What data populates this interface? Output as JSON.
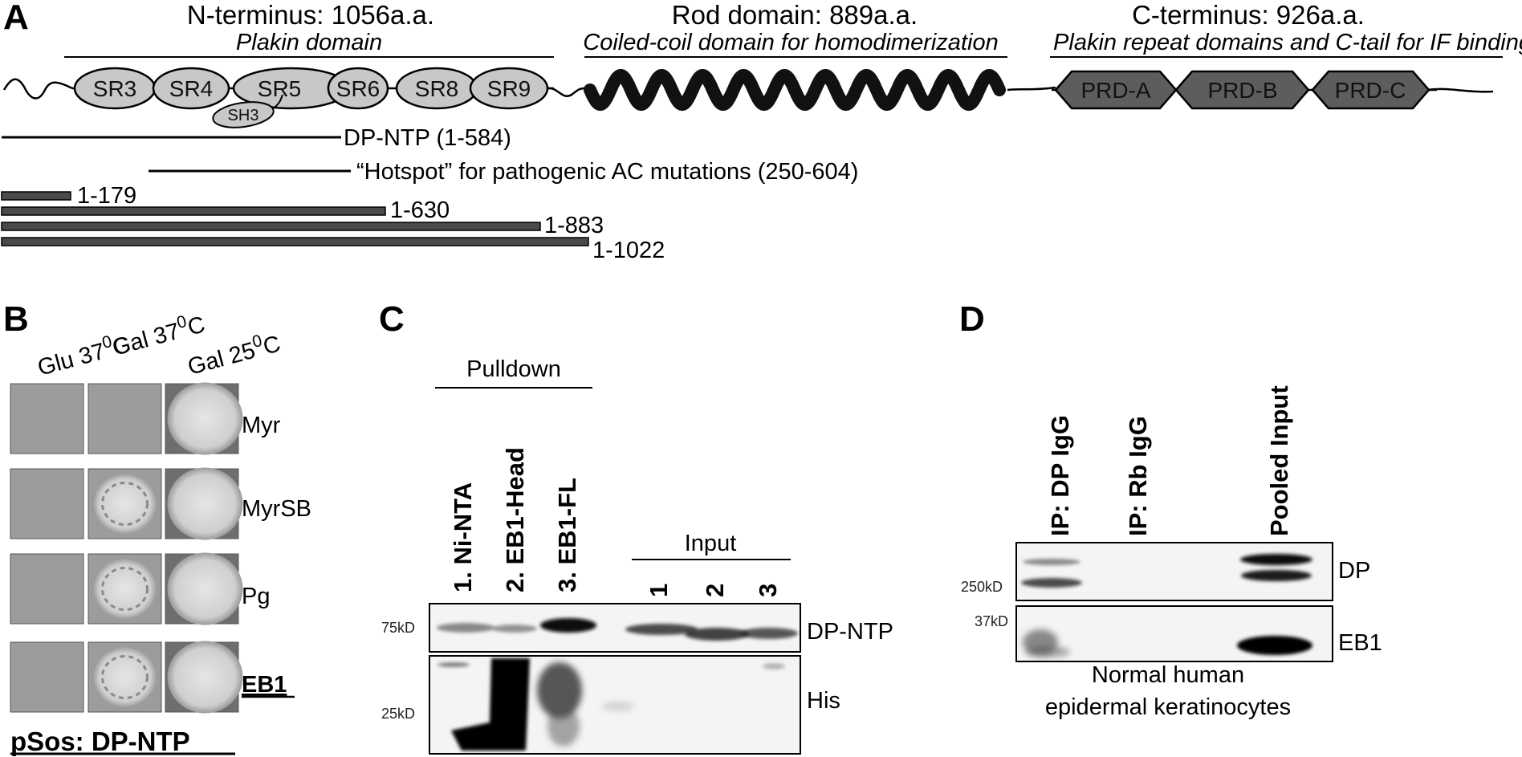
{
  "panel_a": {
    "letter": "A",
    "domains": [
      {
        "title": "N-terminus: 1056a.a.",
        "subtitle": "Plakin domain"
      },
      {
        "title": "Rod domain: 889a.a.",
        "subtitle": "Coiled-coil domain for homodimerization"
      },
      {
        "title": "C-terminus: 926a.a.",
        "subtitle": "Plakin repeat domains and C-tail for IF binding"
      }
    ],
    "spectrin_repeats": [
      "SR3",
      "SR4",
      "SR5",
      "SR6",
      "SR8",
      "SR9"
    ],
    "sh3": "SH3",
    "plakin_repeats": [
      "PRD-A",
      "PRD-B",
      "PRD-C"
    ],
    "dp_ntp": "DP-NTP (1-584)",
    "hotspot": "“Hotspot” for pathogenic AC mutations (250-604)",
    "constructs": [
      "1-179",
      "1-630",
      "1-883",
      "1-1022"
    ]
  },
  "panel_b": {
    "letter": "B",
    "conditions": [
      "Glu 37",
      "Gal 37",
      "Gal 25"
    ],
    "temp_sup": "0",
    "temp_unit": "C",
    "rows": [
      "Myr",
      "MyrSB",
      "Pg",
      "EB1"
    ],
    "bait": "pSos: DP-NTP",
    "growth": [
      [
        0,
        0,
        1
      ],
      [
        0,
        1,
        1
      ],
      [
        0,
        1,
        1
      ],
      [
        0,
        1,
        1
      ]
    ]
  },
  "panel_c": {
    "letter": "C",
    "pulldown_label": "Pulldown",
    "pulldown_lanes": [
      "1. Ni-NTA",
      "2. EB1-Head",
      "3. EB1-FL"
    ],
    "input_label": "Input",
    "input_lanes": [
      "1",
      "2",
      "3"
    ],
    "markers": [
      "75kD",
      "25kD"
    ],
    "bands": [
      "DP-NTP",
      "His"
    ]
  },
  "panel_d": {
    "letter": "D",
    "lanes": [
      "IP: DP IgG",
      "IP: Rb IgG",
      "Pooled Input"
    ],
    "markers": [
      "250kD",
      "37kD"
    ],
    "bands": [
      "DP",
      "EB1"
    ],
    "caption_line1": "Normal human",
    "caption_line2": "epidermal keratinocytes"
  }
}
